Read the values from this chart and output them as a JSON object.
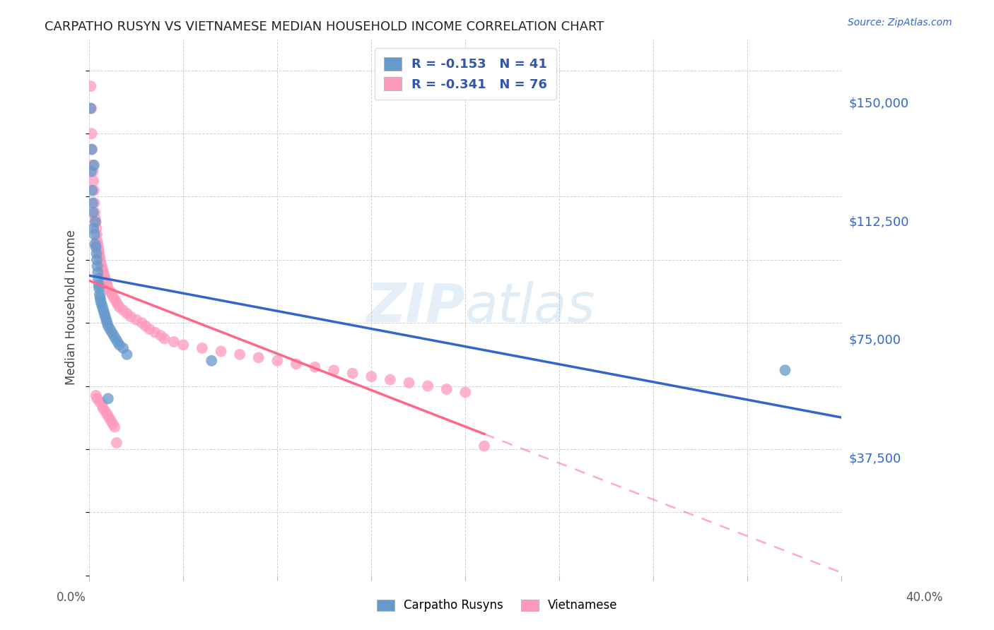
{
  "title": "CARPATHO RUSYN VS VIETNAMESE MEDIAN HOUSEHOLD INCOME CORRELATION CHART",
  "source": "Source: ZipAtlas.com",
  "ylabel": "Median Household Income",
  "yticks": [
    0,
    37500,
    75000,
    112500,
    150000
  ],
  "ytick_labels": [
    "",
    "$37,500",
    "$75,000",
    "$112,500",
    "$150,000"
  ],
  "xlim": [
    0.0,
    0.4
  ],
  "ylim": [
    0,
    170000
  ],
  "legend_entry1": "R = -0.153   N = 41",
  "legend_entry2": "R = -0.341   N = 76",
  "legend_label1": "Carpatho Rusyns",
  "legend_label2": "Vietnamese",
  "blue_color": "#6699CC",
  "pink_color": "#FF99BB",
  "blue_line_color": "#3366CC",
  "pink_line_color": "#FF6688",
  "watermark_zip": "ZIP",
  "watermark_atlas": "atlas",
  "background_color": "#FFFFFF",
  "carpatho_x": [
    0.0008,
    0.001,
    0.0012,
    0.0015,
    0.0018,
    0.002,
    0.0022,
    0.0025,
    0.0028,
    0.003,
    0.0032,
    0.0035,
    0.0038,
    0.004,
    0.0042,
    0.0045,
    0.0048,
    0.005,
    0.0052,
    0.0055,
    0.0058,
    0.006,
    0.0065,
    0.007,
    0.0075,
    0.008,
    0.0085,
    0.009,
    0.0095,
    0.01,
    0.011,
    0.012,
    0.013,
    0.014,
    0.015,
    0.016,
    0.018,
    0.02,
    0.065,
    0.37,
    0.01
  ],
  "carpatho_y": [
    148000,
    128000,
    135000,
    122000,
    118000,
    115000,
    110000,
    130000,
    108000,
    105000,
    112000,
    104000,
    102000,
    100000,
    98000,
    96000,
    94000,
    92000,
    91000,
    89000,
    88000,
    87000,
    86000,
    85000,
    84000,
    83000,
    82000,
    81000,
    80000,
    79000,
    78000,
    77000,
    76000,
    75000,
    74000,
    73000,
    72000,
    70000,
    68000,
    65000,
    56000
  ],
  "vietnamese_x": [
    0.0008,
    0.001,
    0.0012,
    0.0015,
    0.0018,
    0.002,
    0.0022,
    0.0025,
    0.0028,
    0.003,
    0.0032,
    0.0035,
    0.0038,
    0.004,
    0.0042,
    0.0045,
    0.0048,
    0.005,
    0.0052,
    0.0055,
    0.0058,
    0.006,
    0.0065,
    0.007,
    0.0075,
    0.008,
    0.0085,
    0.009,
    0.0095,
    0.01,
    0.011,
    0.012,
    0.013,
    0.014,
    0.015,
    0.016,
    0.018,
    0.02,
    0.022,
    0.025,
    0.028,
    0.03,
    0.032,
    0.035,
    0.038,
    0.04,
    0.045,
    0.05,
    0.06,
    0.07,
    0.08,
    0.09,
    0.1,
    0.11,
    0.12,
    0.13,
    0.14,
    0.15,
    0.16,
    0.17,
    0.18,
    0.19,
    0.2,
    0.0035,
    0.0042,
    0.0055,
    0.0068,
    0.0072,
    0.0085,
    0.0095,
    0.0105,
    0.0115,
    0.0125,
    0.0135,
    0.0145,
    0.21
  ],
  "vietnamese_y": [
    155000,
    148000,
    140000,
    135000,
    130000,
    128000,
    125000,
    122000,
    118000,
    115000,
    113000,
    112000,
    110000,
    108000,
    106000,
    105000,
    104000,
    103000,
    102000,
    101000,
    100000,
    99000,
    98000,
    97000,
    96000,
    95000,
    94000,
    93000,
    92000,
    91000,
    90000,
    89000,
    88000,
    87000,
    86000,
    85000,
    84000,
    83000,
    82000,
    81000,
    80000,
    79000,
    78000,
    77000,
    76000,
    75000,
    74000,
    73000,
    72000,
    71000,
    70000,
    69000,
    68000,
    67000,
    66000,
    65000,
    64000,
    63000,
    62000,
    61000,
    60000,
    59000,
    58000,
    57000,
    56000,
    55000,
    54000,
    53000,
    52000,
    51000,
    50000,
    49000,
    48000,
    47000,
    42000,
    41000
  ]
}
